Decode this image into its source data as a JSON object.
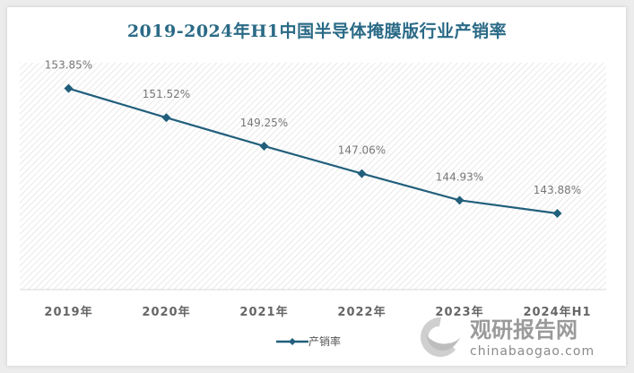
{
  "chart_data": {
    "type": "line",
    "title": "2019-2024年H1中国半导体掩膜版行业产销率",
    "categories": [
      "2019年",
      "2020年",
      "2021年",
      "2022年",
      "2023年",
      "2024年H1"
    ],
    "series": [
      {
        "name": "产销率",
        "values": [
          153.85,
          151.52,
          149.25,
          147.06,
          144.93,
          143.88
        ]
      }
    ],
    "data_labels": [
      "153.85%",
      "151.52%",
      "149.25%",
      "147.06%",
      "144.93%",
      "143.88%"
    ],
    "xlabel": "",
    "ylabel": "",
    "grid": false,
    "legend": "bottom",
    "colors": {
      "series": "#215f7c",
      "title": "#2a6a86"
    }
  },
  "watermark": {
    "brand": "观研报告网",
    "url": "chinabaogao.com"
  }
}
